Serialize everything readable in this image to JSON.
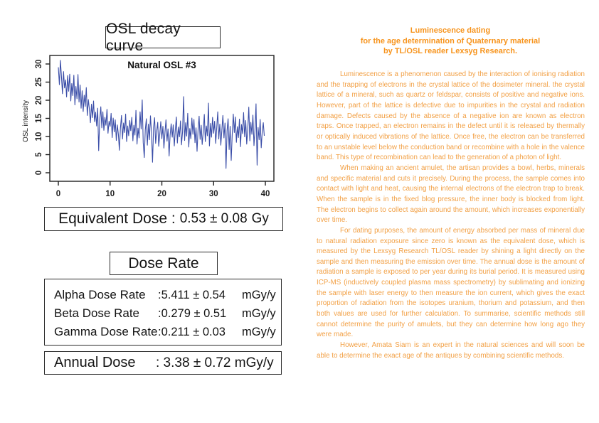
{
  "left_panel": {
    "chart_section_title": "OSL decay curve",
    "equivalent_dose": {
      "label": "Equivalent Dose :",
      "value": "0.53 ± 0.08",
      "unit": "Gy"
    },
    "dose_rate_title": "Dose Rate",
    "dose_rates": [
      {
        "label": "Alpha Dose Rate",
        "value": ":5.411 ± 0.54",
        "unit": "mGy/y"
      },
      {
        "label": "Beta Dose Rate",
        "value": ":0.279 ± 0.51",
        "unit": "mGy/y"
      },
      {
        "label": "Gamma Dose Rate",
        "value": ":0.211 ± 0.03",
        "unit": "mGy/y"
      }
    ],
    "annual_dose": {
      "label": "Annual Dose",
      "value": ": 3.38 ± 0.72",
      "unit": "mGy/y"
    }
  },
  "chart_data": {
    "type": "line",
    "title": "Natural OSL #3",
    "xlabel": "",
    "ylabel": "OSL intensity",
    "xlim": [
      0,
      40
    ],
    "ylim": [
      0,
      31
    ],
    "x_ticks": [
      0,
      10,
      20,
      30,
      40
    ],
    "y_ticks": [
      0,
      5,
      10,
      15,
      20,
      25,
      30
    ],
    "grid": false,
    "legend": "none",
    "line_color": "#3B4EA8",
    "x_start": 0,
    "x_step": 0.2,
    "values": [
      29.1,
      24.3,
      31.0,
      26.5,
      21.8,
      27.9,
      23.4,
      25.6,
      20.9,
      26.8,
      22.5,
      27.2,
      19.8,
      24.6,
      21.3,
      26.9,
      18.7,
      23.8,
      20.4,
      27.1,
      19.5,
      24.2,
      17.8,
      22.6,
      16.9,
      21.4,
      18.3,
      23.5,
      15.8,
      20.2,
      17.4,
      13.8,
      18.9,
      15.2,
      19.8,
      14.1,
      16.7,
      12.9,
      17.8,
      6.1,
      14.6,
      18.2,
      12.4,
      16.8,
      11.7,
      15.3,
      13.1,
      17.5,
      10.9,
      14.2,
      12.8,
      16.4,
      9.7,
      15.1,
      11.3,
      14.6,
      8.9,
      13.2,
      10.6,
      6.2,
      12.4,
      15.8,
      9.3,
      13.7,
      11.1,
      16.2,
      8.6,
      12.9,
      10.2,
      14.4,
      11.6,
      15.3,
      8.8,
      13.1,
      10.4,
      17.2,
      7.9,
      12.3,
      9.6,
      16.8,
      12.1,
      20.1,
      8.4,
      4.2,
      11.8,
      14.9,
      7.6,
      13.4,
      9.1,
      15.7,
      10.8,
      2.9,
      12.6,
      15.2,
      8.1,
      11.4,
      13.9,
      7.3,
      10.7,
      14.1,
      9.4,
      12.8,
      6.8,
      11.2,
      14.6,
      8.7,
      12.1,
      4.6,
      10.3,
      13.5,
      9.8,
      13.2,
      7.4,
      11.7,
      15.4,
      8.2,
      12.6,
      9.9,
      14.3,
      7.7,
      11.3,
      21.0,
      8.9,
      13.8,
      10.1,
      16.4,
      7.1,
      12.2,
      9.4,
      15.1,
      10.6,
      14.7,
      8.3,
      12.4,
      5.9,
      11.8,
      15.6,
      9.2,
      13.1,
      7.8,
      11.4,
      16.1,
      8.6,
      12.9,
      10.2,
      19.2,
      7.4,
      13.6,
      9.8,
      15.3,
      10.9,
      14.2,
      8.1,
      12.3,
      16.8,
      9.3,
      13.4,
      7.6,
      11.9,
      15.8,
      9.6,
      13.7,
      1.2,
      11.6,
      14.9,
      6.4,
      12.8,
      3.4,
      10.4,
      16.2,
      11.1,
      15.4,
      8.4,
      12.7,
      9.7,
      14.8,
      7.2,
      13.3,
      10.8,
      16.6,
      9.9,
      14.4,
      7.9,
      12.1,
      18.1,
      8.8,
      13.9,
      10.6,
      15.9,
      7.5,
      11.7,
      19.0,
      2.1,
      12.5,
      9.1,
      14.7,
      6.9,
      11.3,
      13.8,
      10.2
    ]
  },
  "right_panel": {
    "title_color": "#F7941D",
    "text_color": "#F2A045",
    "title_lines": [
      "Luminescence dating",
      "for the age determination of Quaternary material",
      "by TL/OSL reader Lexsyg Research."
    ],
    "paragraphs": [
      "Luminescence is a phenomenon caused by the interaction of ionising radiation and the trapping of electrons in the crystal lattice of the dosimeter mineral. the crystal lattice of a mineral, such as quartz or feldspar, consists of positive and negative ions. However, part of the lattice is defective due to impurities in the crystal and radiation damage. Defects caused by the absence of a negative ion are known as electron traps. Once trapped, an electron remains in the defect until it is released by thermally or optically induced vibrations of the lattice. Once free, the electron can be transferred to an unstable level below the conduction band or recombine with a hole in the valence band. This type of recombination can lead to the generation of a photon of light.",
      "When making an ancient amulet, the artisan provides a bowl, herbs, minerals and specific material and cuts it precisely. During the process, the sample comes into contact with light and heat, causing the internal electrons of the electron trap to break. When the sample is in the fixed blog pressure, the inner body is blocked from light. The electron begins to collect again around the amount, which increases exponentially over time.",
      "For dating purposes, the amount of energy absorbed per mass of mineral due to natural radiation exposure since zero is known as the equivalent dose, which is measured by the Lexsyg Research TL/OSL reader by shining a light directly on the sample and then measuring the emission over time. The annual dose is the amount of radiation a sample is exposed to per year during its burial period. It is measured using ICP-MS (inductively coupled plasma mass spectrometry) by sublimating and ionizing the sample with laser energy to then measure the ion current, which gives the exact proportion of radiation from the isotopes uranium, thorium and potassium, and then both values are used for further calculation. To summarise, scientific methods still cannot determine the purity of amulets, but they can determine how long ago they were made.",
      "However, Amata Siam is an expert in the natural sciences and will soon be able to determine the exact age of the antiques by combining scientific methods."
    ]
  }
}
